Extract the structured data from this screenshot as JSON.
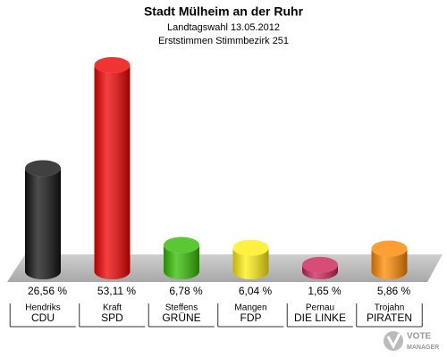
{
  "chart_data": {
    "type": "cylinder",
    "title": "Stadt Mülheim an der Ruhr",
    "subtitle": "Landtagswahl 13.05.2012",
    "subtitle2": "Erststimmen Stimmbezirk 251",
    "categories": [
      "Hendriks",
      "Kraft",
      "Steffens",
      "Mangen",
      "Pernau",
      "Trojahn"
    ],
    "parties": [
      "CDU",
      "SPD",
      "GRÜNE",
      "FDP",
      "DIE LINKE",
      "PIRATEN"
    ],
    "values": [
      26.56,
      53.11,
      6.78,
      6.04,
      1.65,
      5.86
    ],
    "value_labels": [
      "26,56 %",
      "53,11 %",
      "6,78 %",
      "6,04 %",
      "1,65 %",
      "5,86 %"
    ],
    "colors": [
      "#111111",
      "#ee0000",
      "#33bb00",
      "#ffee11",
      "#cc2255",
      "#ff8800"
    ],
    "brand": [
      "VOTE",
      "MANAGER"
    ]
  }
}
